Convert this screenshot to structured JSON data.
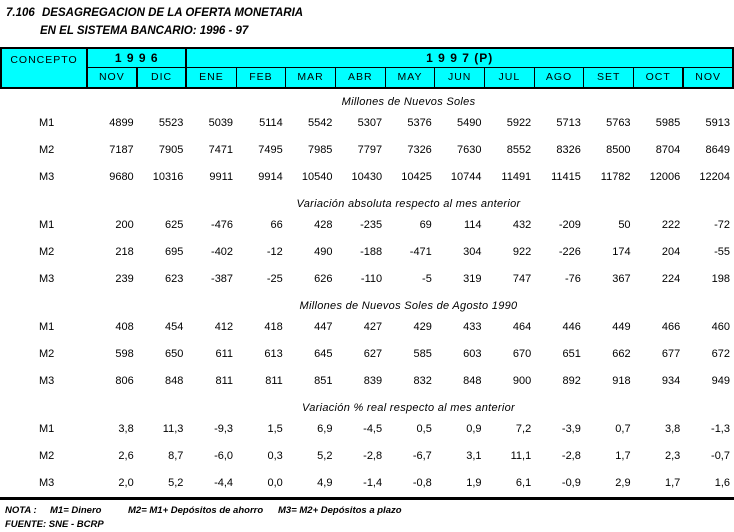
{
  "title": {
    "number": "7.106",
    "line1": "DESAGREGACION DE LA OFERTA MONETARIA",
    "line2": "EN EL SISTEMA BANCARIO: 1996 - 97"
  },
  "colors": {
    "header_background": "#00FFFF",
    "border": "#000000",
    "text": "#000000",
    "page_background": "#FFFFFF"
  },
  "table": {
    "concepto_label": "CONCEPTO",
    "year_groups": [
      {
        "label": "1 9 9 6",
        "span": 2
      },
      {
        "label": "1 9 9 7 (P)",
        "span": 11
      }
    ],
    "months": [
      "NOV",
      "DIC",
      "ENE",
      "FEB",
      "MAR",
      "ABR",
      "MAY",
      "JUN",
      "JUL",
      "AGO",
      "SET",
      "OCT",
      "NOV"
    ],
    "sections": [
      {
        "heading": "Millones de Nuevos Soles",
        "rows": [
          {
            "label": "M1",
            "values": [
              "4899",
              "5523",
              "5039",
              "5114",
              "5542",
              "5307",
              "5376",
              "5490",
              "5922",
              "5713",
              "5763",
              "5985",
              "5913"
            ]
          },
          {
            "label": "M2",
            "values": [
              "7187",
              "7905",
              "7471",
              "7495",
              "7985",
              "7797",
              "7326",
              "7630",
              "8552",
              "8326",
              "8500",
              "8704",
              "8649"
            ]
          },
          {
            "label": "M3",
            "values": [
              "9680",
              "10316",
              "9911",
              "9914",
              "10540",
              "10430",
              "10425",
              "10744",
              "11491",
              "11415",
              "11782",
              "12006",
              "12204"
            ]
          }
        ]
      },
      {
        "heading": "Variación absoluta respecto al mes anterior",
        "rows": [
          {
            "label": "M1",
            "values": [
              "200",
              "625",
              "-476",
              "66",
              "428",
              "-235",
              "69",
              "114",
              "432",
              "-209",
              "50",
              "222",
              "-72"
            ]
          },
          {
            "label": "M2",
            "values": [
              "218",
              "695",
              "-402",
              "-12",
              "490",
              "-188",
              "-471",
              "304",
              "922",
              "-226",
              "174",
              "204",
              "-55"
            ]
          },
          {
            "label": "M3",
            "values": [
              "239",
              "623",
              "-387",
              "-25",
              "626",
              "-110",
              "-5",
              "319",
              "747",
              "-76",
              "367",
              "224",
              "198"
            ]
          }
        ]
      },
      {
        "heading": "Millones de Nuevos Soles de Agosto 1990",
        "rows": [
          {
            "label": "M1",
            "values": [
              "408",
              "454",
              "412",
              "418",
              "447",
              "427",
              "429",
              "433",
              "464",
              "446",
              "449",
              "466",
              "460"
            ]
          },
          {
            "label": "M2",
            "values": [
              "598",
              "650",
              "611",
              "613",
              "645",
              "627",
              "585",
              "603",
              "670",
              "651",
              "662",
              "677",
              "672"
            ]
          },
          {
            "label": "M3",
            "values": [
              "806",
              "848",
              "811",
              "811",
              "851",
              "839",
              "832",
              "848",
              "900",
              "892",
              "918",
              "934",
              "949"
            ]
          }
        ]
      },
      {
        "heading": "Variación % real respecto al mes anterior",
        "rows": [
          {
            "label": "M1",
            "values": [
              "3,8",
              "11,3",
              "-9,3",
              "1,5",
              "6,9",
              "-4,5",
              "0,5",
              "0,9",
              "7,2",
              "-3,9",
              "0,7",
              "3,8",
              "-1,3"
            ]
          },
          {
            "label": "M2",
            "values": [
              "2,6",
              "8,7",
              "-6,0",
              "0,3",
              "5,2",
              "-2,8",
              "-6,7",
              "3,1",
              "11,1",
              "-2,8",
              "1,7",
              "2,3",
              "-0,7"
            ]
          },
          {
            "label": "M3",
            "values": [
              "2,0",
              "5,2",
              "-4,4",
              "0,0",
              "4,9",
              "-1,4",
              "-0,8",
              "1,9",
              "6,1",
              "-0,9",
              "2,9",
              "1,7",
              "1,6"
            ]
          }
        ]
      }
    ]
  },
  "footer": {
    "nota_label": "NOTA :",
    "notes": [
      "M1= Dinero",
      "M2= M1+ Depósitos de ahorro",
      "M3= M2+ Depósitos a plazo"
    ],
    "fuente": "FUENTE: SNE - BCRP"
  }
}
